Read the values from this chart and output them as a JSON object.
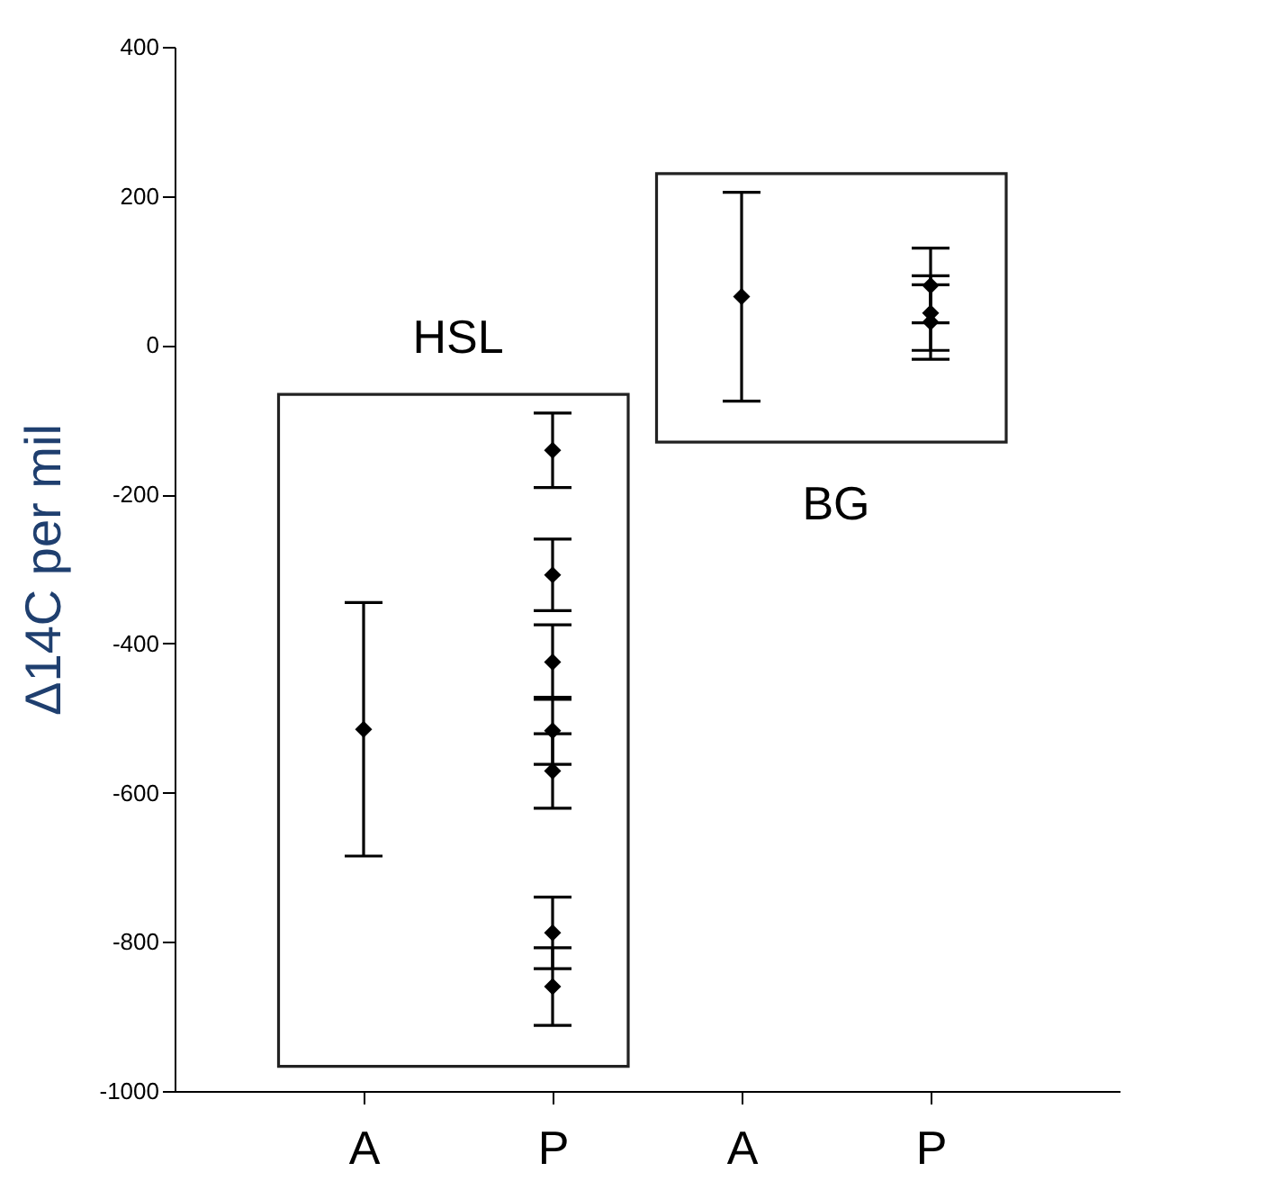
{
  "chart_data": {
    "type": "scatter",
    "ylabel": "Δ14C per mil",
    "categories": [
      "A",
      "P",
      "A",
      "P"
    ],
    "marker": "diamond",
    "ylim": [
      -1000,
      400
    ],
    "yticks": [
      -1000,
      -800,
      -600,
      -400,
      -200,
      0,
      200,
      400
    ],
    "annotations": [
      "HSL",
      "BG"
    ],
    "series": [
      {
        "color": "#000000",
        "values": [
          -515,
          -141,
          65,
          80
        ],
        "errors": [
          170,
          50,
          140,
          50
        ]
      },
      {
        "color": "#000000",
        "values": [
          null,
          -308,
          null,
          43
        ],
        "errors": [
          null,
          48,
          null,
          50
        ]
      },
      {
        "color": "#000000",
        "values": [
          null,
          -425,
          null,
          31
        ],
        "errors": [
          null,
          50,
          null,
          50
        ]
      },
      {
        "color": "#000000",
        "values": [
          null,
          -517,
          null,
          null
        ],
        "errors": [
          null,
          45,
          null,
          null
        ]
      },
      {
        "color": "#000000",
        "values": [
          null,
          -571,
          null,
          null
        ],
        "errors": [
          null,
          50,
          null,
          null
        ]
      },
      {
        "color": "#000000",
        "values": [
          null,
          -788,
          null,
          null
        ],
        "errors": [
          null,
          48,
          null,
          null
        ]
      },
      {
        "color": "#000000",
        "values": [
          null,
          -860,
          null,
          null
        ],
        "errors": [
          null,
          52,
          null,
          null
        ]
      }
    ]
  }
}
